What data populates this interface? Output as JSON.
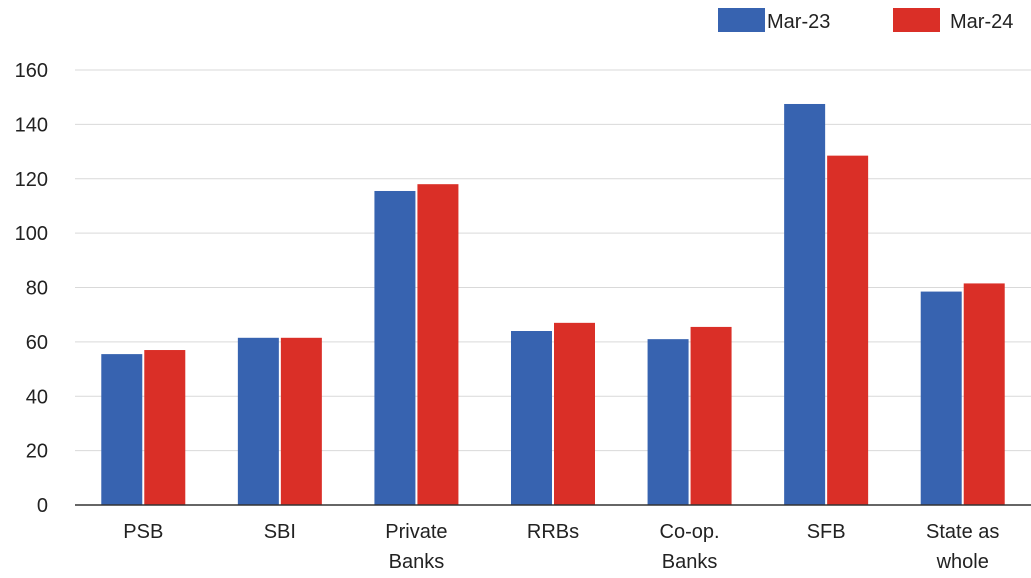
{
  "chart_data": {
    "type": "bar",
    "title": "",
    "xlabel": "",
    "ylabel": "",
    "categories": [
      [
        "PSB"
      ],
      [
        "SBI"
      ],
      [
        "Private",
        "Banks"
      ],
      [
        "RRBs"
      ],
      [
        "Co-op.",
        "Banks"
      ],
      [
        "SFB"
      ],
      [
        "State as",
        "whole"
      ]
    ],
    "series": [
      {
        "name": "Mar-23",
        "color": "#3763b0",
        "values": [
          55.5,
          61.5,
          115.5,
          64,
          61,
          147.5,
          78.5
        ]
      },
      {
        "name": "Mar-24",
        "color": "#da2f27",
        "values": [
          57,
          61.5,
          118,
          67,
          65.5,
          128.5,
          81.5
        ]
      }
    ],
    "ylim": [
      0,
      160
    ],
    "yticks": [
      0,
      20,
      40,
      60,
      80,
      100,
      120,
      140,
      160
    ],
    "grid": true,
    "legend": "top-right"
  }
}
